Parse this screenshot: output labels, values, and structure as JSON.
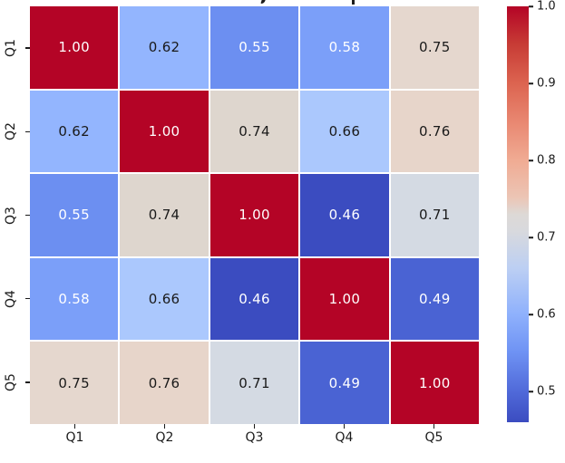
{
  "figure": {
    "background": "#ffffff",
    "title_clipped": true
  },
  "chart_data": {
    "type": "heatmap",
    "title": "",
    "categories": [
      "Q1",
      "Q2",
      "Q3",
      "Q4",
      "Q5"
    ],
    "x_tick_labels": [
      "Q1",
      "Q2",
      "Q3",
      "Q4",
      "Q5"
    ],
    "y_tick_labels": [
      "Q1",
      "Q2",
      "Q3",
      "Q4",
      "Q5"
    ],
    "matrix": [
      [
        1.0,
        0.62,
        0.55,
        0.58,
        0.75
      ],
      [
        0.62,
        1.0,
        0.74,
        0.66,
        0.76
      ],
      [
        0.55,
        0.74,
        1.0,
        0.46,
        0.71
      ],
      [
        0.58,
        0.66,
        0.46,
        1.0,
        0.49
      ],
      [
        0.75,
        0.76,
        0.71,
        0.49,
        1.0
      ]
    ],
    "annotation_format": "0.00",
    "colormap": "coolwarm",
    "vmin": 0.46,
    "vmax": 1.0,
    "grid_line_color": "#ffffff",
    "value_colors": {
      "1.00": "#b40426",
      "0.76": "#e7d5ca",
      "0.75": "#e5d7ce",
      "0.74": "#ded6ce",
      "0.71": "#d4dae3",
      "0.66": "#abc8fd",
      "0.62": "#93b5fe",
      "0.58": "#7b9ff9",
      "0.55": "#6c8ff1",
      "0.49": "#4a63d3",
      "0.46": "#3b4cc0"
    },
    "annotation_text_colors": {
      "1.00": "#ffffff",
      "0.76": "#1a1a1a",
      "0.75": "#1a1a1a",
      "0.74": "#1a1a1a",
      "0.71": "#1a1a1a",
      "0.66": "#1a1a1a",
      "0.62": "#1a1a1a",
      "0.58": "#ffffff",
      "0.55": "#ffffff",
      "0.49": "#ffffff",
      "0.46": "#ffffff"
    },
    "colorbar": {
      "position": "right",
      "tick_labels": [
        "1.0",
        "0.9",
        "0.8",
        "0.7",
        "0.6",
        "0.5"
      ],
      "tick_values": [
        1.0,
        0.9,
        0.8,
        0.7,
        0.6,
        0.5
      ],
      "gradient_stops": [
        {
          "pos": 0,
          "color": "#b40426"
        },
        {
          "pos": 9,
          "color": "#c73b35"
        },
        {
          "pos": 18.5,
          "color": "#dc6450"
        },
        {
          "pos": 28,
          "color": "#e98872"
        },
        {
          "pos": 37,
          "color": "#f0ab93"
        },
        {
          "pos": 46,
          "color": "#ecc5b5"
        },
        {
          "pos": 50,
          "color": "#ddd9d6"
        },
        {
          "pos": 54,
          "color": "#d8d9dd"
        },
        {
          "pos": 63,
          "color": "#bccff3"
        },
        {
          "pos": 74,
          "color": "#8fb1fc"
        },
        {
          "pos": 83,
          "color": "#6f93f4"
        },
        {
          "pos": 93,
          "color": "#4f68d8"
        },
        {
          "pos": 100,
          "color": "#3b4cc0"
        }
      ]
    }
  }
}
